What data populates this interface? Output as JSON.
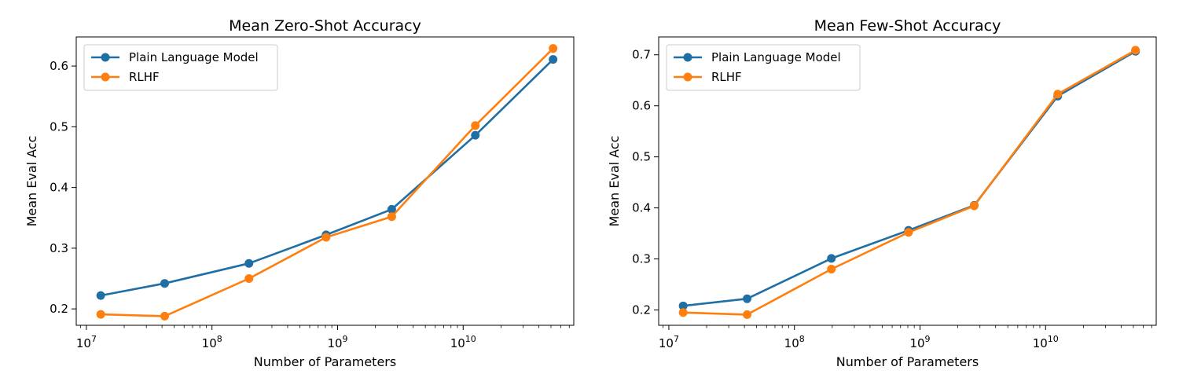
{
  "chart_data": [
    {
      "type": "line",
      "title": "Mean Zero-Shot Accuracy",
      "xlabel": "Number of Parameters",
      "ylabel": "Mean Eval Acc",
      "xscale": "log",
      "xlim": [
        8300000,
        76000000000
      ],
      "ylim": [
        0.173,
        0.648
      ],
      "x_ticks": [
        10000000,
        100000000,
        1000000000,
        10000000000
      ],
      "x_tick_labels": [
        {
          "base": "10",
          "exp": "7"
        },
        {
          "base": "10",
          "exp": "8"
        },
        {
          "base": "10",
          "exp": "9"
        },
        {
          "base": "10",
          "exp": "10"
        }
      ],
      "y_ticks": [
        0.2,
        0.3,
        0.4,
        0.5,
        0.6
      ],
      "y_tick_labels": [
        "0.2",
        "0.3",
        "0.4",
        "0.5",
        "0.6"
      ],
      "grid": false,
      "legend": "top-left",
      "x": [
        13000000,
        42000000,
        197000000,
        810000000,
        2700000000,
        12500000000,
        52000000000
      ],
      "series": [
        {
          "name": "Plain Language Model",
          "color": "#1f6fa5",
          "values": [
            0.222,
            0.242,
            0.275,
            0.322,
            0.364,
            0.486,
            0.611
          ]
        },
        {
          "name": "RLHF",
          "color": "#ff7f0e",
          "values": [
            0.191,
            0.188,
            0.25,
            0.318,
            0.352,
            0.502,
            0.629
          ]
        }
      ]
    },
    {
      "type": "line",
      "title": "Mean Few-Shot Accuracy",
      "xlabel": "Number of Parameters",
      "ylabel": "Mean Eval Acc",
      "xscale": "log",
      "xlim": [
        8300000,
        76000000000
      ],
      "ylim": [
        0.17,
        0.735
      ],
      "x_ticks": [
        10000000,
        100000000,
        1000000000,
        10000000000
      ],
      "x_tick_labels": [
        {
          "base": "10",
          "exp": "7"
        },
        {
          "base": "10",
          "exp": "8"
        },
        {
          "base": "10",
          "exp": "9"
        },
        {
          "base": "10",
          "exp": "10"
        }
      ],
      "y_ticks": [
        0.2,
        0.3,
        0.4,
        0.5,
        0.6,
        0.7
      ],
      "y_tick_labels": [
        "0.2",
        "0.3",
        "0.4",
        "0.5",
        "0.6",
        "0.7"
      ],
      "grid": false,
      "legend": "top-left",
      "x": [
        13000000,
        42000000,
        197000000,
        810000000,
        2700000000,
        12500000000,
        52000000000
      ],
      "series": [
        {
          "name": "Plain Language Model",
          "color": "#1f6fa5",
          "values": [
            0.208,
            0.222,
            0.301,
            0.356,
            0.405,
            0.619,
            0.707
          ]
        },
        {
          "name": "RLHF",
          "color": "#ff7f0e",
          "values": [
            0.195,
            0.191,
            0.28,
            0.352,
            0.404,
            0.623,
            0.709
          ]
        }
      ]
    }
  ]
}
